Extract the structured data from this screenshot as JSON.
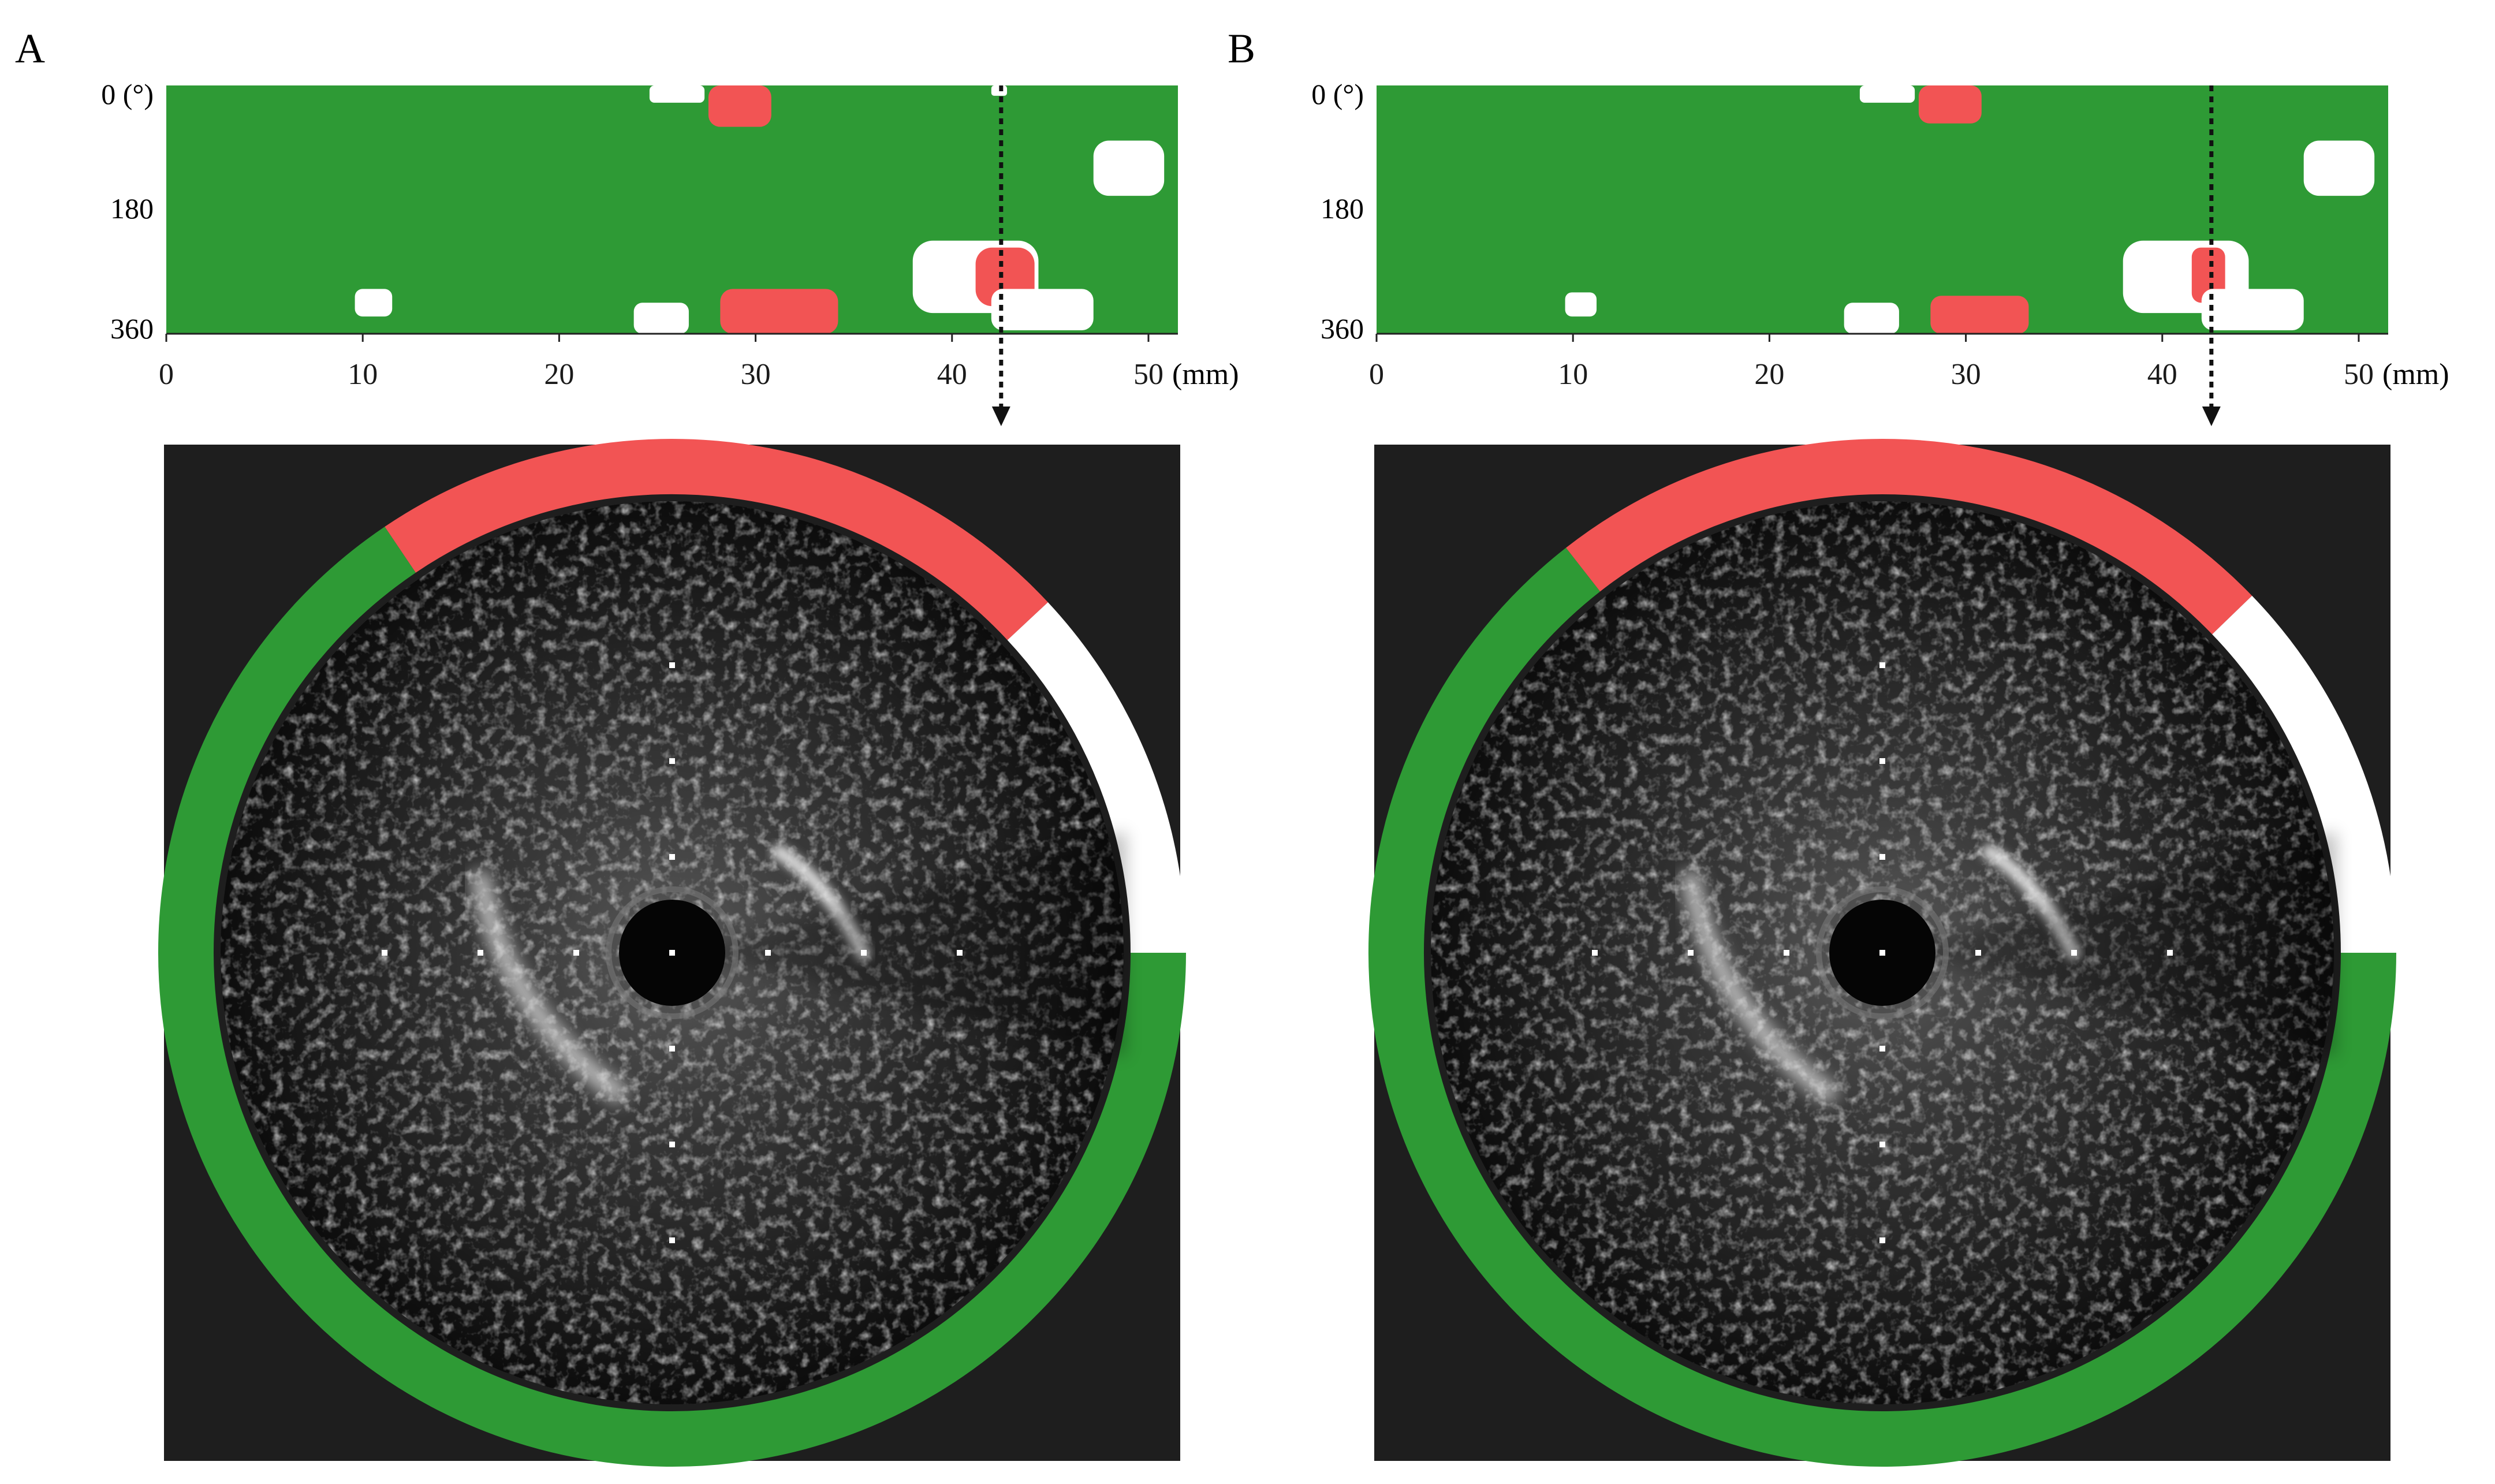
{
  "figure": {
    "panels": [
      {
        "id": "A",
        "label": "A",
        "map": {
          "y_ticks": [
            "0 (°)",
            "180",
            "360"
          ],
          "x_ticks": [
            "0",
            "10",
            "20",
            "30",
            "40",
            "50"
          ],
          "x_unit": "(mm)",
          "x_range_mm": [
            0,
            51.5
          ],
          "y_range_deg": [
            0,
            360
          ],
          "pointer_position_mm": 42.5,
          "regions": [
            {
              "kind": "red",
              "x_mm": [
                27.6,
                30.8
              ],
              "deg": [
                0,
                60
              ]
            },
            {
              "kind": "white",
              "x_mm": [
                24.6,
                27.4
              ],
              "deg": [
                0,
                25
              ]
            },
            {
              "kind": "white",
              "x_mm": [
                42.0,
                42.8
              ],
              "deg": [
                0,
                15
              ]
            },
            {
              "kind": "white",
              "x_mm": [
                47.2,
                50.8
              ],
              "deg": [
                80,
                160
              ]
            },
            {
              "kind": "white",
              "x_mm": [
                38.0,
                44.4
              ],
              "deg": [
                225,
                330
              ]
            },
            {
              "kind": "red",
              "x_mm": [
                41.2,
                44.2
              ],
              "deg": [
                235,
                320
              ]
            },
            {
              "kind": "white",
              "x_mm": [
                42.0,
                47.2
              ],
              "deg": [
                295,
                355
              ]
            },
            {
              "kind": "white",
              "x_mm": [
                9.6,
                11.5
              ],
              "deg": [
                295,
                335
              ]
            },
            {
              "kind": "white",
              "x_mm": [
                23.8,
                26.6
              ],
              "deg": [
                315,
                360
              ]
            },
            {
              "kind": "red",
              "x_mm": [
                28.2,
                34.2
              ],
              "deg": [
                295,
                360
              ]
            }
          ]
        },
        "ring": {
          "segments": [
            {
              "kind": "green",
              "from_deg": 0,
              "to_deg": 236
            },
            {
              "kind": "red",
              "from_deg": 236,
              "to_deg": 317
            },
            {
              "kind": "white",
              "from_deg": 317,
              "to_deg": 360
            }
          ]
        }
      },
      {
        "id": "B",
        "label": "B",
        "map": {
          "y_ticks": [
            "0 (°)",
            "180",
            "360"
          ],
          "x_ticks": [
            "0",
            "10",
            "20",
            "30",
            "40",
            "50"
          ],
          "x_unit": "(mm)",
          "x_range_mm": [
            0,
            51.5
          ],
          "y_range_deg": [
            0,
            360
          ],
          "pointer_position_mm": 42.5,
          "regions": [
            {
              "kind": "red",
              "x_mm": [
                27.6,
                30.8
              ],
              "deg": [
                0,
                55
              ]
            },
            {
              "kind": "white",
              "x_mm": [
                24.6,
                27.4
              ],
              "deg": [
                0,
                25
              ]
            },
            {
              "kind": "white",
              "x_mm": [
                47.2,
                50.8
              ],
              "deg": [
                80,
                160
              ]
            },
            {
              "kind": "white",
              "x_mm": [
                38.0,
                44.4
              ],
              "deg": [
                225,
                330
              ]
            },
            {
              "kind": "red",
              "x_mm": [
                41.5,
                43.2
              ],
              "deg": [
                235,
                315
              ]
            },
            {
              "kind": "white",
              "x_mm": [
                42.0,
                47.2
              ],
              "deg": [
                295,
                355
              ]
            },
            {
              "kind": "white",
              "x_mm": [
                9.6,
                11.2
              ],
              "deg": [
                300,
                335
              ]
            },
            {
              "kind": "white",
              "x_mm": [
                23.8,
                26.6
              ],
              "deg": [
                315,
                360
              ]
            },
            {
              "kind": "red",
              "x_mm": [
                28.2,
                33.2
              ],
              "deg": [
                305,
                360
              ]
            }
          ]
        },
        "ring": {
          "segments": [
            {
              "kind": "green",
              "from_deg": 0,
              "to_deg": 232
            },
            {
              "kind": "red",
              "from_deg": 232,
              "to_deg": 316
            },
            {
              "kind": "white",
              "from_deg": 316,
              "to_deg": 360
            }
          ]
        }
      }
    ],
    "colors": {
      "green": "#2e9a35",
      "red": "#f25454",
      "white": "#ffffff",
      "ivus_background": "#1e1e1e",
      "text": "#1a1a1a"
    }
  }
}
